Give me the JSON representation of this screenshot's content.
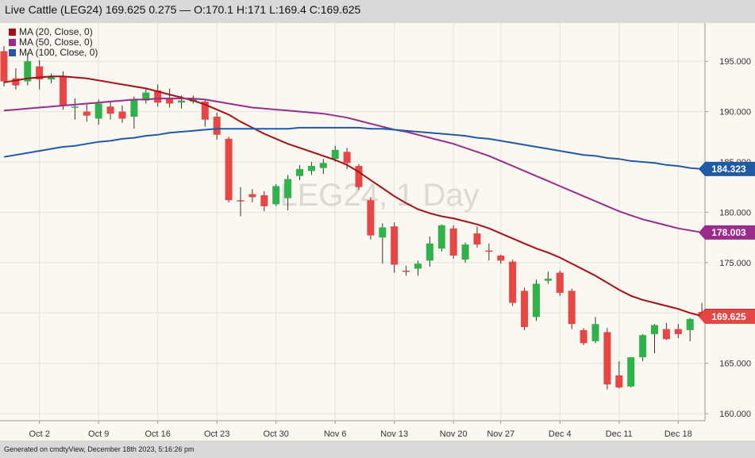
{
  "header": {
    "title": "Live Cattle (LEG24) 169.625 0.275 — O:170.1 H:171 L:169.4 C:169.625"
  },
  "watermark": "LEG24, 1 Day",
  "footer": "Generated on cmdtyView, December 18th 2023, 5:16:26 pm",
  "colors": {
    "up": "#2db34a",
    "down": "#e84545",
    "ma20": "#a50f15",
    "ma50": "#9b2c8c",
    "ma100": "#1f5aa6",
    "background": "#fbf8f1",
    "grid": "#e5e2da"
  },
  "chart_data": {
    "type": "candlestick",
    "x_ticks": [
      {
        "label": "Oct 2",
        "index": 3
      },
      {
        "label": "Oct 9",
        "index": 8
      },
      {
        "label": "Oct 16",
        "index": 13
      },
      {
        "label": "Oct 23",
        "index": 18
      },
      {
        "label": "Oct 30",
        "index": 23
      },
      {
        "label": "Nov 6",
        "index": 28
      },
      {
        "label": "Nov 13",
        "index": 33
      },
      {
        "label": "Nov 20",
        "index": 38
      },
      {
        "label": "Nov 27",
        "index": 42
      },
      {
        "label": "Dec 4",
        "index": 47
      },
      {
        "label": "Dec 11",
        "index": 52
      },
      {
        "label": "Dec 18",
        "index": 57
      }
    ],
    "y_ticks": [
      160,
      165,
      170,
      175,
      180,
      185,
      190,
      195
    ],
    "y_tick_labels": [
      "160.000",
      "165.000",
      "170.000",
      "175.000",
      "180.000",
      "185.000",
      "190.000",
      "195.000"
    ],
    "ylim": [
      159.3,
      198.8
    ],
    "candles": [
      {
        "o": 196.0,
        "h": 196.5,
        "l": 192.5,
        "c": 193.0
      },
      {
        "o": 193.3,
        "h": 194.3,
        "l": 192.2,
        "c": 192.6
      },
      {
        "o": 193.0,
        "h": 195.8,
        "l": 192.6,
        "c": 195.0
      },
      {
        "o": 194.5,
        "h": 195.1,
        "l": 192.2,
        "c": 193.2
      },
      {
        "o": 193.2,
        "h": 193.8,
        "l": 192.8,
        "c": 193.5
      },
      {
        "o": 193.5,
        "h": 194.0,
        "l": 190.2,
        "c": 190.6
      },
      {
        "o": 190.5,
        "h": 191.3,
        "l": 189.2,
        "c": 190.5
      },
      {
        "o": 190.0,
        "h": 190.7,
        "l": 189.0,
        "c": 189.6
      },
      {
        "o": 189.3,
        "h": 191.2,
        "l": 188.7,
        "c": 190.8
      },
      {
        "o": 190.5,
        "h": 191.0,
        "l": 189.2,
        "c": 189.8
      },
      {
        "o": 190.0,
        "h": 190.6,
        "l": 188.9,
        "c": 189.3
      },
      {
        "o": 189.5,
        "h": 191.5,
        "l": 188.3,
        "c": 191.2
      },
      {
        "o": 191.1,
        "h": 192.2,
        "l": 190.8,
        "c": 191.9
      },
      {
        "o": 192.1,
        "h": 192.7,
        "l": 190.5,
        "c": 190.9
      },
      {
        "o": 191.3,
        "h": 192.3,
        "l": 190.4,
        "c": 190.8
      },
      {
        "o": 190.9,
        "h": 191.6,
        "l": 190.3,
        "c": 191.1
      },
      {
        "o": 191.0,
        "h": 191.6,
        "l": 190.8,
        "c": 191.2
      },
      {
        "o": 191.0,
        "h": 191.2,
        "l": 188.5,
        "c": 189.2
      },
      {
        "o": 189.5,
        "h": 189.9,
        "l": 187.2,
        "c": 187.7
      },
      {
        "o": 187.3,
        "h": 187.5,
        "l": 181.0,
        "c": 181.2
      },
      {
        "o": 181.2,
        "h": 182.5,
        "l": 179.6,
        "c": 181.1
      },
      {
        "o": 181.8,
        "h": 182.3,
        "l": 181.0,
        "c": 181.5
      },
      {
        "o": 181.7,
        "h": 182.1,
        "l": 180.1,
        "c": 180.6
      },
      {
        "o": 180.8,
        "h": 182.8,
        "l": 180.6,
        "c": 182.6
      },
      {
        "o": 181.4,
        "h": 183.7,
        "l": 180.2,
        "c": 183.3
      },
      {
        "o": 183.6,
        "h": 184.7,
        "l": 183.2,
        "c": 184.3
      },
      {
        "o": 184.1,
        "h": 185.0,
        "l": 183.7,
        "c": 184.6
      },
      {
        "o": 184.4,
        "h": 185.3,
        "l": 183.8,
        "c": 184.9
      },
      {
        "o": 185.3,
        "h": 186.6,
        "l": 185.0,
        "c": 186.2
      },
      {
        "o": 186.0,
        "h": 186.4,
        "l": 184.3,
        "c": 184.9
      },
      {
        "o": 184.6,
        "h": 184.8,
        "l": 182.2,
        "c": 182.5
      },
      {
        "o": 181.2,
        "h": 181.5,
        "l": 177.3,
        "c": 177.7
      },
      {
        "o": 177.5,
        "h": 178.9,
        "l": 174.9,
        "c": 178.5
      },
      {
        "o": 178.6,
        "h": 179.0,
        "l": 174.0,
        "c": 174.8
      },
      {
        "o": 174.2,
        "h": 174.7,
        "l": 173.7,
        "c": 174.1
      },
      {
        "o": 174.4,
        "h": 175.2,
        "l": 173.7,
        "c": 174.9
      },
      {
        "o": 175.2,
        "h": 177.6,
        "l": 174.6,
        "c": 176.9
      },
      {
        "o": 176.4,
        "h": 178.8,
        "l": 176.1,
        "c": 178.7
      },
      {
        "o": 178.4,
        "h": 178.7,
        "l": 175.4,
        "c": 175.7
      },
      {
        "o": 175.3,
        "h": 177.0,
        "l": 175.0,
        "c": 176.8
      },
      {
        "o": 177.9,
        "h": 178.6,
        "l": 176.5,
        "c": 176.8
      },
      {
        "o": 176.2,
        "h": 176.9,
        "l": 175.2,
        "c": 176.1
      },
      {
        "o": 175.7,
        "h": 175.8,
        "l": 174.9,
        "c": 175.2
      },
      {
        "o": 175.1,
        "h": 175.3,
        "l": 170.7,
        "c": 171.0
      },
      {
        "o": 172.2,
        "h": 172.5,
        "l": 168.3,
        "c": 168.6
      },
      {
        "o": 169.6,
        "h": 173.3,
        "l": 169.2,
        "c": 172.9
      },
      {
        "o": 173.2,
        "h": 174.1,
        "l": 172.9,
        "c": 173.4
      },
      {
        "o": 174.0,
        "h": 174.2,
        "l": 171.7,
        "c": 172.0
      },
      {
        "o": 172.2,
        "h": 172.4,
        "l": 168.4,
        "c": 168.9
      },
      {
        "o": 168.3,
        "h": 168.5,
        "l": 166.8,
        "c": 167.0
      },
      {
        "o": 167.2,
        "h": 169.6,
        "l": 167.0,
        "c": 168.9
      },
      {
        "o": 168.1,
        "h": 168.5,
        "l": 162.4,
        "c": 162.9
      },
      {
        "o": 163.8,
        "h": 165.2,
        "l": 162.5,
        "c": 162.6
      },
      {
        "o": 162.7,
        "h": 165.6,
        "l": 162.6,
        "c": 165.6
      },
      {
        "o": 165.6,
        "h": 167.9,
        "l": 165.2,
        "c": 167.8
      },
      {
        "o": 167.9,
        "h": 168.9,
        "l": 166.0,
        "c": 168.8
      },
      {
        "o": 168.4,
        "h": 169.0,
        "l": 167.3,
        "c": 167.4
      },
      {
        "o": 168.4,
        "h": 168.9,
        "l": 167.5,
        "c": 167.9
      },
      {
        "o": 168.3,
        "h": 169.5,
        "l": 167.2,
        "c": 169.4
      },
      {
        "o": 170.1,
        "h": 171.0,
        "l": 169.4,
        "c": 169.625
      }
    ],
    "series": [
      {
        "name": "MA (20, Close, 0)",
        "color": "#a50f15",
        "last_label": "169.625",
        "values": [
          192.9,
          193.1,
          193.3,
          193.4,
          193.5,
          193.5,
          193.4,
          193.3,
          193.1,
          192.9,
          192.7,
          192.5,
          192.3,
          192.0,
          191.7,
          191.4,
          191.1,
          190.7,
          190.2,
          189.7,
          189.0,
          188.4,
          187.8,
          187.3,
          186.8,
          186.4,
          186.0,
          185.6,
          185.2,
          184.7,
          184.0,
          183.2,
          182.4,
          181.6,
          180.9,
          180.3,
          179.9,
          179.6,
          179.4,
          179.1,
          178.8,
          178.4,
          177.9,
          177.4,
          176.9,
          176.4,
          176.0,
          175.5,
          174.9,
          174.3,
          173.7,
          173.0,
          172.3,
          171.7,
          171.3,
          171.0,
          170.7,
          170.4,
          170.0,
          169.7
        ]
      },
      {
        "name": "MA (50, Close, 0)",
        "color": "#9b2c8c",
        "last_label": "178.003",
        "values": [
          190.1,
          190.2,
          190.3,
          190.4,
          190.5,
          190.6,
          190.7,
          190.8,
          190.9,
          191.0,
          191.1,
          191.2,
          191.2,
          191.3,
          191.3,
          191.3,
          191.3,
          191.2,
          191.0,
          190.8,
          190.6,
          190.4,
          190.3,
          190.2,
          190.1,
          190.0,
          189.9,
          189.8,
          189.6,
          189.4,
          189.1,
          188.8,
          188.5,
          188.2,
          188.0,
          187.7,
          187.4,
          187.1,
          186.8,
          186.4,
          186.0,
          185.6,
          185.1,
          184.6,
          184.1,
          183.6,
          183.1,
          182.6,
          182.1,
          181.6,
          181.1,
          180.6,
          180.1,
          179.7,
          179.3,
          179.0,
          178.7,
          178.4,
          178.2,
          178.0
        ]
      },
      {
        "name": "MA (100, Close, 0)",
        "color": "#1f5aa6",
        "last_label": "184.323",
        "values": [
          185.5,
          185.7,
          185.9,
          186.1,
          186.3,
          186.5,
          186.6,
          186.8,
          187.0,
          187.1,
          187.3,
          187.4,
          187.6,
          187.7,
          187.9,
          188.0,
          188.1,
          188.2,
          188.3,
          188.3,
          188.3,
          188.3,
          188.3,
          188.3,
          188.3,
          188.4,
          188.4,
          188.4,
          188.4,
          188.4,
          188.4,
          188.3,
          188.3,
          188.2,
          188.1,
          188.0,
          187.9,
          187.8,
          187.7,
          187.6,
          187.4,
          187.3,
          187.1,
          186.9,
          186.7,
          186.5,
          186.3,
          186.1,
          185.9,
          185.7,
          185.6,
          185.4,
          185.3,
          185.1,
          185.0,
          184.9,
          184.7,
          184.6,
          184.4,
          184.3
        ]
      }
    ],
    "last_price_label": "169.625",
    "grid": true
  }
}
